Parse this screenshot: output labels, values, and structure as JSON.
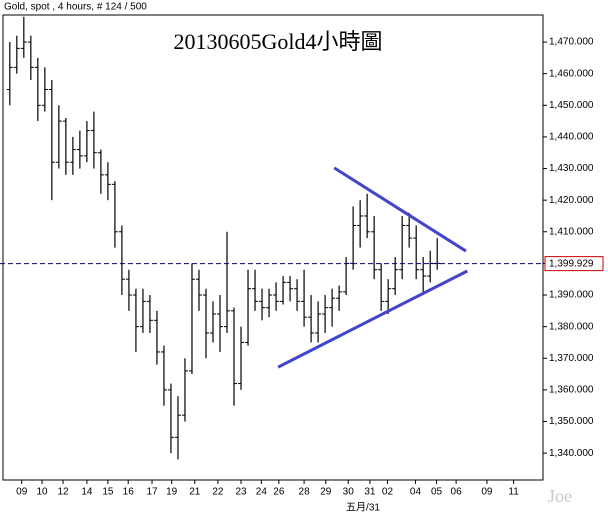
{
  "chart_data": {
    "type": "ohlc",
    "header": "Gold, spot , 4 hours, # 124 / 500",
    "title": "20130605Gold4小時圖",
    "x_label": "五月/31",
    "watermark": "Joe",
    "color": "#000000",
    "bars": [
      [
        1455,
        1470,
        1450,
        1462
      ],
      [
        1462,
        1472,
        1460,
        1468
      ],
      [
        1468,
        1478,
        1465,
        1470
      ],
      [
        1470,
        1472,
        1458,
        1462
      ],
      [
        1462,
        1465,
        1445,
        1450
      ],
      [
        1450,
        1462,
        1448,
        1455
      ],
      [
        1455,
        1458,
        1420,
        1432
      ],
      [
        1432,
        1450,
        1430,
        1445
      ],
      [
        1445,
        1446,
        1428,
        1432
      ],
      [
        1432,
        1440,
        1428,
        1436
      ],
      [
        1436,
        1442,
        1430,
        1434
      ],
      [
        1434,
        1445,
        1432,
        1442
      ],
      [
        1442,
        1448,
        1430,
        1435
      ],
      [
        1435,
        1436,
        1422,
        1428
      ],
      [
        1428,
        1432,
        1420,
        1425
      ],
      [
        1425,
        1426,
        1405,
        1410
      ],
      [
        1410,
        1412,
        1390,
        1395
      ],
      [
        1395,
        1398,
        1385,
        1390
      ],
      [
        1390,
        1392,
        1372,
        1380
      ],
      [
        1380,
        1392,
        1378,
        1388
      ],
      [
        1388,
        1390,
        1378,
        1382
      ],
      [
        1382,
        1385,
        1368,
        1372
      ],
      [
        1372,
        1374,
        1355,
        1360
      ],
      [
        1360,
        1362,
        1340,
        1345
      ],
      [
        1345,
        1358,
        1338,
        1352
      ],
      [
        1352,
        1370,
        1350,
        1366
      ],
      [
        1366,
        1400,
        1365,
        1395
      ],
      [
        1395,
        1398,
        1385,
        1390
      ],
      [
        1390,
        1392,
        1370,
        1378
      ],
      [
        1378,
        1388,
        1375,
        1384
      ],
      [
        1384,
        1390,
        1372,
        1380
      ],
      [
        1380,
        1410,
        1378,
        1385
      ],
      [
        1385,
        1386,
        1355,
        1362
      ],
      [
        1362,
        1380,
        1360,
        1375
      ],
      [
        1375,
        1398,
        1374,
        1392
      ],
      [
        1392,
        1398,
        1385,
        1388
      ],
      [
        1388,
        1392,
        1382,
        1386
      ],
      [
        1386,
        1392,
        1383,
        1390
      ],
      [
        1390,
        1394,
        1385,
        1388
      ],
      [
        1388,
        1396,
        1387,
        1394
      ],
      [
        1394,
        1396,
        1388,
        1392
      ],
      [
        1392,
        1395,
        1385,
        1388
      ],
      [
        1388,
        1398,
        1380,
        1383
      ],
      [
        1383,
        1390,
        1375,
        1378
      ],
      [
        1378,
        1388,
        1375,
        1384
      ],
      [
        1384,
        1390,
        1378,
        1386
      ],
      [
        1386,
        1392,
        1380,
        1389
      ],
      [
        1389,
        1393,
        1385,
        1391
      ],
      [
        1391,
        1402,
        1390,
        1400
      ],
      [
        1400,
        1418,
        1398,
        1412
      ],
      [
        1412,
        1420,
        1405,
        1415
      ],
      [
        1415,
        1422,
        1408,
        1410
      ],
      [
        1410,
        1415,
        1395,
        1398
      ],
      [
        1398,
        1400,
        1385,
        1388
      ],
      [
        1388,
        1395,
        1384,
        1392
      ],
      [
        1392,
        1402,
        1390,
        1398
      ],
      [
        1398,
        1415,
        1395,
        1412
      ],
      [
        1412,
        1416,
        1405,
        1408
      ],
      [
        1408,
        1412,
        1395,
        1398
      ],
      [
        1398,
        1402,
        1390,
        1396
      ],
      [
        1396,
        1404,
        1394,
        1400
      ],
      [
        1400,
        1408,
        1398,
        1400
      ]
    ],
    "xlim": [
      -1.4,
      76.1
    ],
    "xticks": [
      {
        "value": 1.7,
        "label": "09"
      },
      {
        "value": 4.6,
        "label": "10"
      },
      {
        "value": 7.6,
        "label": "12"
      },
      {
        "value": 11,
        "label": "14"
      },
      {
        "value": 14,
        "label": "15"
      },
      {
        "value": 16.9,
        "label": "16"
      },
      {
        "value": 20.3,
        "label": "17"
      },
      {
        "value": 23.1,
        "label": "19"
      },
      {
        "value": 26.4,
        "label": "21"
      },
      {
        "value": 29.7,
        "label": "22"
      },
      {
        "value": 33,
        "label": "23"
      },
      {
        "value": 35.9,
        "label": "24"
      },
      {
        "value": 38.4,
        "label": "26"
      },
      {
        "value": 42,
        "label": "28"
      },
      {
        "value": 45.1,
        "label": "29"
      },
      {
        "value": 48.3,
        "label": "30"
      },
      {
        "value": 51.4,
        "label": "31"
      },
      {
        "value": 53.9,
        "label": "02"
      },
      {
        "value": 57.9,
        "label": "04"
      },
      {
        "value": 60.9,
        "label": "05"
      },
      {
        "value": 63.7,
        "label": "06"
      },
      {
        "value": 68.1,
        "label": "09"
      },
      {
        "value": 71.9,
        "label": "11"
      }
    ],
    "ylim": [
      1331.5,
      1483.3
    ],
    "yticks": [
      {
        "value": 1340,
        "label": "1,340.000"
      },
      {
        "value": 1350,
        "label": "1,350.000"
      },
      {
        "value": 1360,
        "label": "1,360.000"
      },
      {
        "value": 1370,
        "label": "1,370.000"
      },
      {
        "value": 1380,
        "label": "1,380.000"
      },
      {
        "value": 1390,
        "label": "1,390.000"
      },
      {
        "value": 1400,
        "label": "1,400.000"
      },
      {
        "value": 1410,
        "label": "1,410.000"
      },
      {
        "value": 1420,
        "label": "1,420.000"
      },
      {
        "value": 1430,
        "label": "1,430.000"
      },
      {
        "value": 1440,
        "label": "1,440.000"
      },
      {
        "value": 1450,
        "label": "1,450.000"
      },
      {
        "value": 1460,
        "label": "1,460.000"
      },
      {
        "value": 1470,
        "label": "1,470.000"
      }
    ],
    "last_price": {
      "value": 1399.929,
      "label": "1,399.929",
      "color": "#000080"
    },
    "trendlines": [
      {
        "color": "#4444cc",
        "x": [
          46.3,
          65.1
        ],
        "y": [
          1430.2,
          1403.9
        ]
      },
      {
        "color": "#4444cc",
        "x": [
          38.3,
          65.3
        ],
        "y": [
          1367.2,
          1397.6
        ]
      }
    ]
  }
}
